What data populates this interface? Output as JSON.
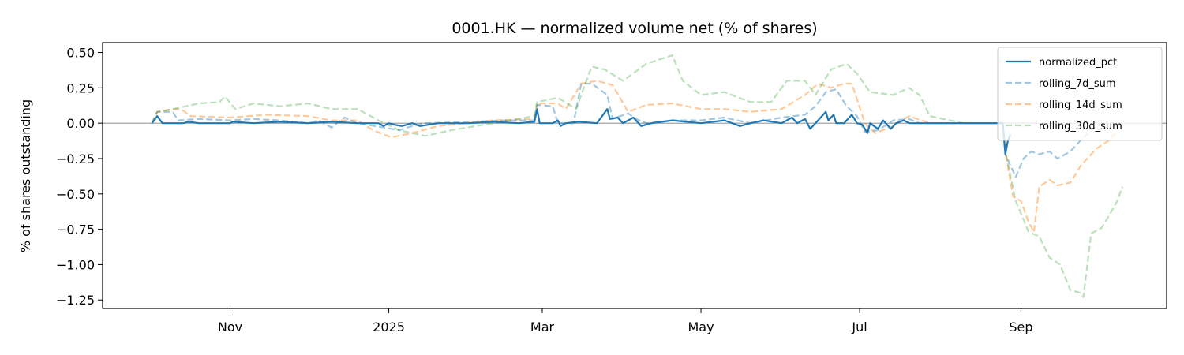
{
  "chart_data": {
    "type": "line",
    "title": "0001.HK — normalized volume net (% of shares)",
    "xlabel": "",
    "ylabel": "% of shares outstanding",
    "x_axis": {
      "kind": "date",
      "range": [
        "2024-09-13",
        "2025-10-27"
      ],
      "ticks": [
        {
          "date": "2024-11-01",
          "label": "Nov"
        },
        {
          "date": "2025-01-01",
          "label": "2025"
        },
        {
          "date": "2025-03-01",
          "label": "Mar"
        },
        {
          "date": "2025-05-01",
          "label": "May"
        },
        {
          "date": "2025-07-01",
          "label": "Jul"
        },
        {
          "date": "2025-09-01",
          "label": "Sep"
        }
      ]
    },
    "y_axis": {
      "range": [
        -1.31,
        0.57
      ],
      "ticks": [
        {
          "value": 0.5,
          "label": "0.50"
        },
        {
          "value": 0.25,
          "label": "0.25"
        },
        {
          "value": 0.0,
          "label": "0.00"
        },
        {
          "value": -0.25,
          "label": "−0.25"
        },
        {
          "value": -0.5,
          "label": "−0.50"
        },
        {
          "value": -0.75,
          "label": "−0.75"
        },
        {
          "value": -1.0,
          "label": "−1.00"
        },
        {
          "value": -1.25,
          "label": "−1.25"
        }
      ]
    },
    "grid": false,
    "zero_line": true,
    "legend_position": "top-right",
    "series": [
      {
        "name": "normalized_pct",
        "color": "#1f77b4",
        "style": "solid",
        "opacity": 1.0,
        "points": [
          [
            "2024-10-02",
            0.0
          ],
          [
            "2024-10-04",
            0.05
          ],
          [
            "2024-10-06",
            0.0
          ],
          [
            "2024-10-14",
            0.0
          ],
          [
            "2024-10-16",
            0.01
          ],
          [
            "2024-10-20",
            0.0
          ],
          [
            "2024-11-01",
            0.0
          ],
          [
            "2024-11-02",
            0.01
          ],
          [
            "2024-11-10",
            0.0
          ],
          [
            "2024-11-20",
            0.01
          ],
          [
            "2024-12-01",
            0.0
          ],
          [
            "2024-12-10",
            0.01
          ],
          [
            "2024-12-20",
            0.0
          ],
          [
            "2024-12-28",
            0.0
          ],
          [
            "2024-12-30",
            -0.02
          ],
          [
            "2025-01-01",
            0.0
          ],
          [
            "2025-01-03",
            -0.01
          ],
          [
            "2025-01-06",
            -0.02
          ],
          [
            "2025-01-10",
            0.0
          ],
          [
            "2025-01-13",
            -0.02
          ],
          [
            "2025-01-20",
            0.0
          ],
          [
            "2025-02-01",
            0.0
          ],
          [
            "2025-02-10",
            0.01
          ],
          [
            "2025-02-20",
            0.0
          ],
          [
            "2025-02-26",
            0.01
          ],
          [
            "2025-02-27",
            0.1
          ],
          [
            "2025-02-28",
            0.0
          ],
          [
            "2025-03-05",
            0.0
          ],
          [
            "2025-03-07",
            0.02
          ],
          [
            "2025-03-08",
            -0.02
          ],
          [
            "2025-03-10",
            0.0
          ],
          [
            "2025-03-15",
            0.01
          ],
          [
            "2025-03-22",
            0.0
          ],
          [
            "2025-03-26",
            0.1
          ],
          [
            "2025-03-27",
            0.03
          ],
          [
            "2025-03-30",
            0.04
          ],
          [
            "2025-04-01",
            0.0
          ],
          [
            "2025-04-05",
            0.04
          ],
          [
            "2025-04-08",
            -0.02
          ],
          [
            "2025-04-12",
            0.0
          ],
          [
            "2025-04-20",
            0.02
          ],
          [
            "2025-05-01",
            0.0
          ],
          [
            "2025-05-10",
            0.02
          ],
          [
            "2025-05-16",
            -0.02
          ],
          [
            "2025-05-20",
            0.0
          ],
          [
            "2025-05-25",
            0.02
          ],
          [
            "2025-06-01",
            0.0
          ],
          [
            "2025-06-05",
            0.04
          ],
          [
            "2025-06-07",
            0.0
          ],
          [
            "2025-06-10",
            0.03
          ],
          [
            "2025-06-12",
            -0.04
          ],
          [
            "2025-06-14",
            0.0
          ],
          [
            "2025-06-18",
            0.08
          ],
          [
            "2025-06-19",
            0.02
          ],
          [
            "2025-06-21",
            0.06
          ],
          [
            "2025-06-22",
            0.0
          ],
          [
            "2025-06-25",
            0.0
          ],
          [
            "2025-06-28",
            0.06
          ],
          [
            "2025-06-30",
            0.0
          ],
          [
            "2025-07-02",
            -0.01
          ],
          [
            "2025-07-04",
            -0.07
          ],
          [
            "2025-07-05",
            0.0
          ],
          [
            "2025-07-08",
            -0.04
          ],
          [
            "2025-07-10",
            0.02
          ],
          [
            "2025-07-13",
            -0.04
          ],
          [
            "2025-07-15",
            0.0
          ],
          [
            "2025-07-18",
            0.02
          ],
          [
            "2025-07-20",
            0.0
          ],
          [
            "2025-08-25",
            0.0
          ],
          [
            "2025-08-26",
            -0.22
          ],
          [
            "2025-08-27",
            -0.12
          ],
          [
            "2025-08-28",
            -0.08
          ]
        ]
      },
      {
        "name": "rolling_7d_sum",
        "color": "#1f77b4",
        "style": "dashed",
        "opacity": 0.42,
        "points": [
          [
            "2024-10-02",
            0.0
          ],
          [
            "2024-10-04",
            0.08
          ],
          [
            "2024-10-10",
            0.08
          ],
          [
            "2024-10-12",
            0.02
          ],
          [
            "2024-10-20",
            0.03
          ],
          [
            "2024-11-01",
            0.02
          ],
          [
            "2024-11-10",
            0.03
          ],
          [
            "2024-11-20",
            0.02
          ],
          [
            "2024-12-01",
            0.0
          ],
          [
            "2024-12-05",
            0.02
          ],
          [
            "2024-12-10",
            -0.03
          ],
          [
            "2024-12-15",
            0.04
          ],
          [
            "2024-12-20",
            0.0
          ],
          [
            "2024-12-30",
            -0.03
          ],
          [
            "2025-01-05",
            -0.05
          ],
          [
            "2025-01-10",
            -0.02
          ],
          [
            "2025-01-15",
            0.0
          ],
          [
            "2025-02-01",
            0.01
          ],
          [
            "2025-02-15",
            0.02
          ],
          [
            "2025-02-26",
            0.02
          ],
          [
            "2025-02-27",
            0.13
          ],
          [
            "2025-03-05",
            0.12
          ],
          [
            "2025-03-07",
            0.0
          ],
          [
            "2025-03-10",
            0.0
          ],
          [
            "2025-03-13",
            0.0
          ],
          [
            "2025-03-16",
            0.28
          ],
          [
            "2025-03-20",
            0.28
          ],
          [
            "2025-03-26",
            0.2
          ],
          [
            "2025-03-28",
            0.03
          ],
          [
            "2025-04-03",
            0.07
          ],
          [
            "2025-04-06",
            0.03
          ],
          [
            "2025-04-10",
            0.0
          ],
          [
            "2025-04-20",
            0.02
          ],
          [
            "2025-05-01",
            0.02
          ],
          [
            "2025-05-10",
            0.04
          ],
          [
            "2025-05-20",
            0.0
          ],
          [
            "2025-06-01",
            0.04
          ],
          [
            "2025-06-10",
            0.06
          ],
          [
            "2025-06-14",
            0.12
          ],
          [
            "2025-06-18",
            0.22
          ],
          [
            "2025-06-22",
            0.24
          ],
          [
            "2025-06-26",
            0.12
          ],
          [
            "2025-06-30",
            0.05
          ],
          [
            "2025-07-03",
            -0.06
          ],
          [
            "2025-07-08",
            -0.05
          ],
          [
            "2025-07-14",
            0.02
          ],
          [
            "2025-07-20",
            0.03
          ],
          [
            "2025-07-24",
            0.0
          ],
          [
            "2025-08-25",
            0.0
          ],
          [
            "2025-08-26",
            -0.22
          ],
          [
            "2025-08-30",
            -0.38
          ],
          [
            "2025-09-02",
            -0.25
          ],
          [
            "2025-09-05",
            -0.2
          ],
          [
            "2025-09-08",
            -0.22
          ],
          [
            "2025-09-12",
            -0.2
          ],
          [
            "2025-09-15",
            -0.25
          ],
          [
            "2025-09-20",
            -0.2
          ],
          [
            "2025-09-24",
            -0.12
          ],
          [
            "2025-09-28",
            -0.05
          ],
          [
            "2025-10-02",
            0.0
          ]
        ]
      },
      {
        "name": "rolling_14d_sum",
        "color": "#ff7f0e",
        "style": "dashed",
        "opacity": 0.42,
        "points": [
          [
            "2024-10-02",
            0.0
          ],
          [
            "2024-10-04",
            0.08
          ],
          [
            "2024-10-10",
            0.1
          ],
          [
            "2024-10-13",
            0.1
          ],
          [
            "2024-10-17",
            0.05
          ],
          [
            "2024-11-01",
            0.04
          ],
          [
            "2024-11-15",
            0.06
          ],
          [
            "2024-12-01",
            0.05
          ],
          [
            "2024-12-10",
            0.02
          ],
          [
            "2024-12-20",
            0.02
          ],
          [
            "2024-12-26",
            -0.05
          ],
          [
            "2025-01-02",
            -0.1
          ],
          [
            "2025-01-10",
            -0.07
          ],
          [
            "2025-01-20",
            -0.02
          ],
          [
            "2025-02-10",
            0.02
          ],
          [
            "2025-02-26",
            0.03
          ],
          [
            "2025-02-27",
            0.14
          ],
          [
            "2025-03-07",
            0.14
          ],
          [
            "2025-03-10",
            0.1
          ],
          [
            "2025-03-16",
            0.28
          ],
          [
            "2025-03-22",
            0.3
          ],
          [
            "2025-03-28",
            0.27
          ],
          [
            "2025-04-03",
            0.08
          ],
          [
            "2025-04-10",
            0.13
          ],
          [
            "2025-04-20",
            0.14
          ],
          [
            "2025-05-01",
            0.1
          ],
          [
            "2025-05-10",
            0.1
          ],
          [
            "2025-05-20",
            0.08
          ],
          [
            "2025-06-01",
            0.1
          ],
          [
            "2025-06-10",
            0.2
          ],
          [
            "2025-06-15",
            0.28
          ],
          [
            "2025-06-20",
            0.25
          ],
          [
            "2025-06-25",
            0.28
          ],
          [
            "2025-06-28",
            0.28
          ],
          [
            "2025-07-03",
            0.0
          ],
          [
            "2025-07-07",
            -0.07
          ],
          [
            "2025-07-14",
            -0.02
          ],
          [
            "2025-07-20",
            0.05
          ],
          [
            "2025-07-28",
            0.0
          ],
          [
            "2025-08-25",
            0.0
          ],
          [
            "2025-08-26",
            -0.2
          ],
          [
            "2025-08-29",
            -0.52
          ],
          [
            "2025-09-01",
            -0.55
          ],
          [
            "2025-09-04",
            -0.7
          ],
          [
            "2025-09-06",
            -0.77
          ],
          [
            "2025-09-08",
            -0.45
          ],
          [
            "2025-09-12",
            -0.4
          ],
          [
            "2025-09-15",
            -0.44
          ],
          [
            "2025-09-20",
            -0.42
          ],
          [
            "2025-09-24",
            -0.3
          ],
          [
            "2025-09-30",
            -0.18
          ],
          [
            "2025-10-05",
            -0.12
          ],
          [
            "2025-10-08",
            -0.05
          ]
        ]
      },
      {
        "name": "rolling_30d_sum",
        "color": "#2ca02c",
        "style": "dashed",
        "opacity": 0.32,
        "points": [
          [
            "2024-10-02",
            0.0
          ],
          [
            "2024-10-04",
            0.08
          ],
          [
            "2024-10-10",
            0.1
          ],
          [
            "2024-10-20",
            0.14
          ],
          [
            "2024-10-28",
            0.15
          ],
          [
            "2024-10-30",
            0.19
          ],
          [
            "2024-11-03",
            0.1
          ],
          [
            "2024-11-10",
            0.14
          ],
          [
            "2024-11-20",
            0.12
          ],
          [
            "2024-12-01",
            0.14
          ],
          [
            "2024-12-10",
            0.1
          ],
          [
            "2024-12-20",
            0.1
          ],
          [
            "2024-12-28",
            0.02
          ],
          [
            "2025-01-05",
            -0.05
          ],
          [
            "2025-01-15",
            -0.09
          ],
          [
            "2025-01-25",
            -0.05
          ],
          [
            "2025-02-10",
            0.0
          ],
          [
            "2025-02-26",
            0.05
          ],
          [
            "2025-02-27",
            0.15
          ],
          [
            "2025-03-07",
            0.18
          ],
          [
            "2025-03-14",
            0.1
          ],
          [
            "2025-03-20",
            0.4
          ],
          [
            "2025-03-25",
            0.38
          ],
          [
            "2025-04-01",
            0.3
          ],
          [
            "2025-04-10",
            0.42
          ],
          [
            "2025-04-20",
            0.48
          ],
          [
            "2025-04-24",
            0.3
          ],
          [
            "2025-05-01",
            0.2
          ],
          [
            "2025-05-10",
            0.22
          ],
          [
            "2025-05-20",
            0.15
          ],
          [
            "2025-05-28",
            0.15
          ],
          [
            "2025-06-03",
            0.3
          ],
          [
            "2025-06-10",
            0.3
          ],
          [
            "2025-06-14",
            0.2
          ],
          [
            "2025-06-20",
            0.38
          ],
          [
            "2025-06-26",
            0.42
          ],
          [
            "2025-06-30",
            0.35
          ],
          [
            "2025-07-05",
            0.22
          ],
          [
            "2025-07-14",
            0.2
          ],
          [
            "2025-07-20",
            0.25
          ],
          [
            "2025-07-24",
            0.2
          ],
          [
            "2025-07-28",
            0.05
          ],
          [
            "2025-08-10",
            0.0
          ],
          [
            "2025-08-25",
            0.0
          ],
          [
            "2025-08-26",
            -0.2
          ],
          [
            "2025-08-30",
            -0.55
          ],
          [
            "2025-09-04",
            -0.77
          ],
          [
            "2025-09-08",
            -0.8
          ],
          [
            "2025-09-12",
            -0.95
          ],
          [
            "2025-09-16",
            -1.0
          ],
          [
            "2025-09-20",
            -1.18
          ],
          [
            "2025-09-24",
            -1.2
          ],
          [
            "2025-09-25",
            -1.23
          ],
          [
            "2025-09-28",
            -0.78
          ],
          [
            "2025-10-02",
            -0.74
          ],
          [
            "2025-10-05",
            -0.65
          ],
          [
            "2025-10-08",
            -0.55
          ],
          [
            "2025-10-10",
            -0.45
          ]
        ]
      }
    ]
  }
}
